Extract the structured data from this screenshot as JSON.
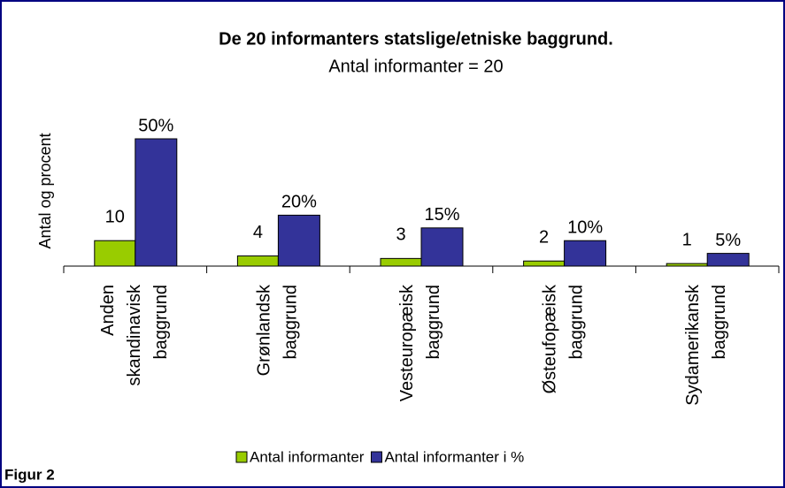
{
  "chart_data": {
    "type": "bar",
    "title": "De 20 informanters statslige/etniske baggrund.",
    "subtitle": "Antal informanter = 20",
    "y_label": "Antal og procent",
    "categories": [
      "Anden skandinavisk baggrund",
      "Grønlandsk baggrund",
      "Vesteuropæisk baggrund",
      "Østeufopæisk baggrund",
      "Sydamerikansk baggrund"
    ],
    "series": [
      {
        "name": "Antal informanter",
        "color": "#99cc00",
        "values": [
          10,
          4,
          3,
          2,
          1
        ]
      },
      {
        "name": "Antal informanter i %",
        "color": "#333399",
        "values": [
          50,
          20,
          15,
          10,
          5
        ],
        "value_labels": [
          "50%",
          "20%",
          "15%",
          "10%",
          "5%"
        ]
      }
    ],
    "ylim": [
      0,
      50
    ],
    "legend": "bottom",
    "figure_label": "Figur 2"
  }
}
